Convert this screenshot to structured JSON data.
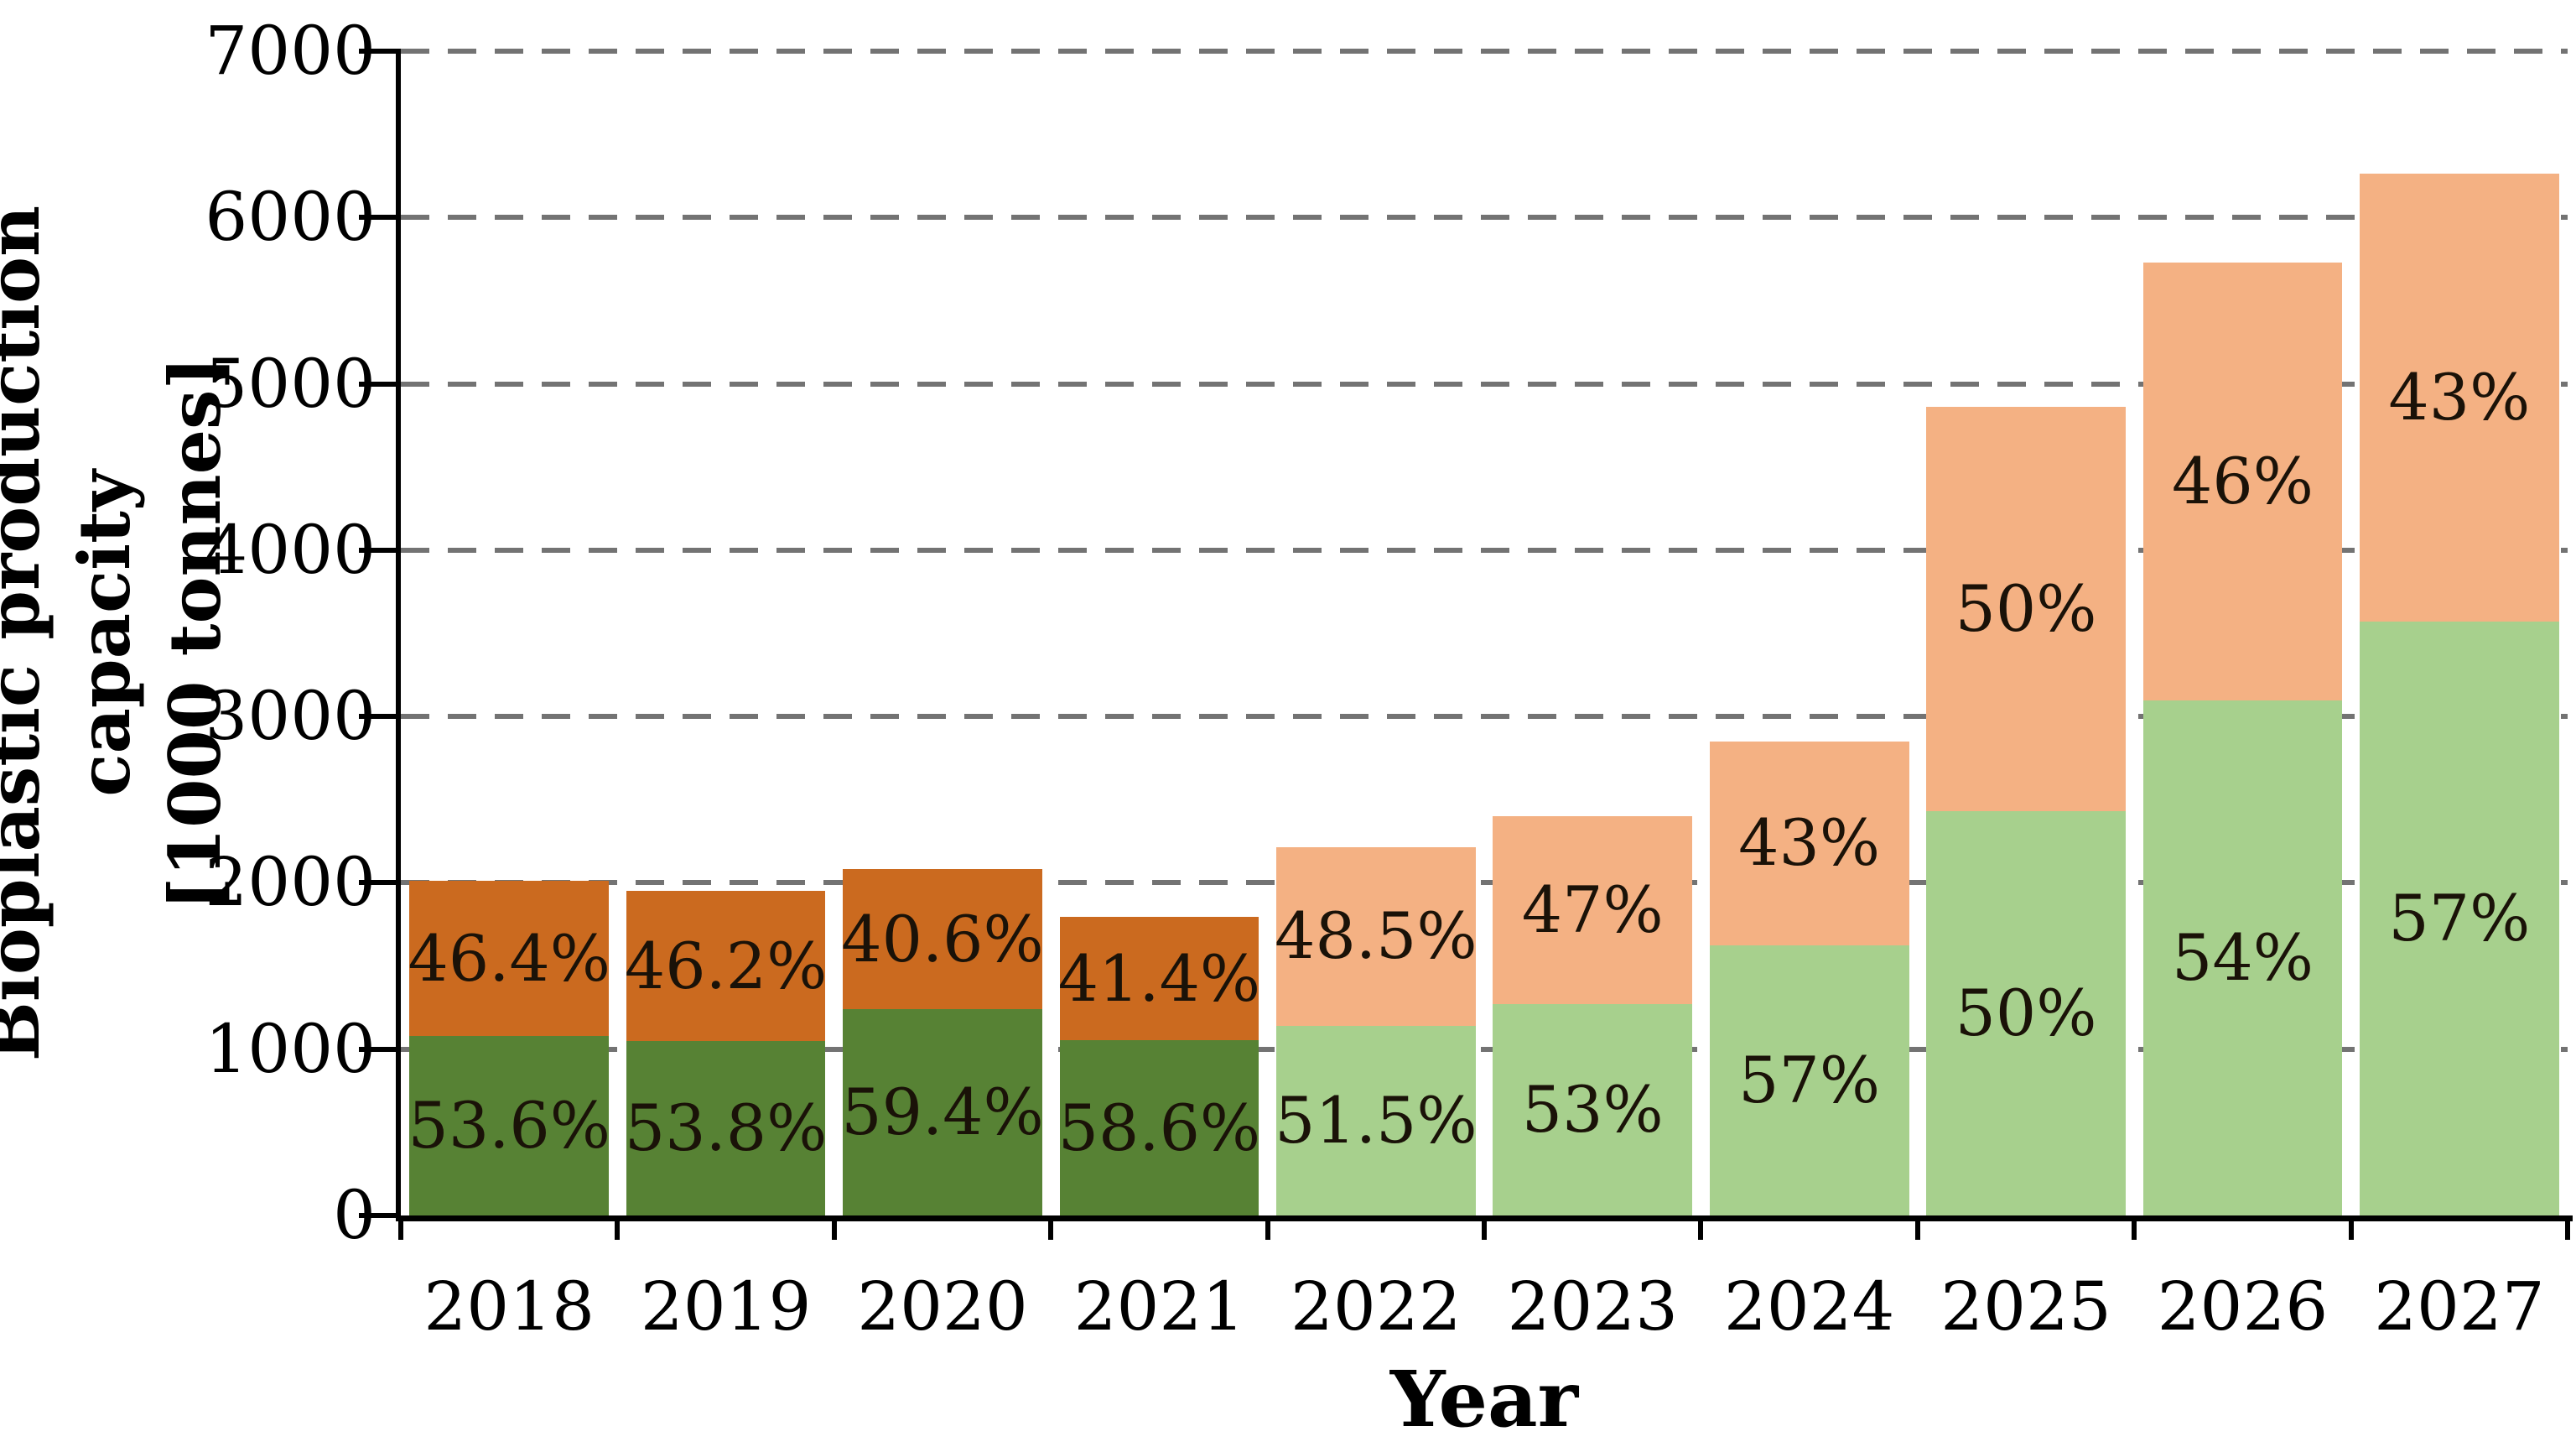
{
  "chart_data": {
    "type": "bar",
    "stacked": true,
    "title": "",
    "xlabel": "Year",
    "ylabel_line1": "Bioplastic production capacity",
    "ylabel_line2": "[1000 tonnes]",
    "ylim": [
      0,
      7000
    ],
    "ytick_interval": 1000,
    "yticks": [
      0,
      1000,
      2000,
      3000,
      4000,
      5000,
      6000,
      7000
    ],
    "grid": "dashed horizontal",
    "legend": "none",
    "categories": [
      "2018",
      "2019",
      "2020",
      "2021",
      "2022",
      "2023",
      "2024",
      "2025",
      "2026",
      "2027"
    ],
    "series": [
      {
        "name": "green (bottom segment)",
        "values": [
          1077,
          1049,
          1238,
          1052,
          1141,
          1272,
          1625,
          2430,
          3094,
          3571
        ]
      },
      {
        "name": "orange (top segment)",
        "values": [
          933,
          901,
          847,
          743,
          1074,
          1128,
          1226,
          2430,
          2636,
          2694
        ]
      }
    ],
    "totals": [
      2010,
      1950,
      2085,
      1795,
      2215,
      2400,
      2850,
      4860,
      5730,
      6265
    ],
    "bars": [
      {
        "year": "2018",
        "total": 2010,
        "green_pct": 53.6,
        "orange_pct": 46.4,
        "green_label": "53.6%",
        "orange_label": "46.4%",
        "palette": "dark"
      },
      {
        "year": "2019",
        "total": 1950,
        "green_pct": 53.8,
        "orange_pct": 46.2,
        "green_label": "53.8%",
        "orange_label": "46.2%",
        "palette": "dark"
      },
      {
        "year": "2020",
        "total": 2085,
        "green_pct": 59.4,
        "orange_pct": 40.6,
        "green_label": "59.4%",
        "orange_label": "40.6%",
        "palette": "dark"
      },
      {
        "year": "2021",
        "total": 1795,
        "green_pct": 58.6,
        "orange_pct": 41.4,
        "green_label": "58.6%",
        "orange_label": "41.4%",
        "palette": "dark"
      },
      {
        "year": "2022",
        "total": 2215,
        "green_pct": 51.5,
        "orange_pct": 48.5,
        "green_label": "51.5%",
        "orange_label": "48.5%",
        "palette": "light"
      },
      {
        "year": "2023",
        "total": 2400,
        "green_pct": 53.0,
        "orange_pct": 47.0,
        "green_label": "53%",
        "orange_label": "47%",
        "palette": "light"
      },
      {
        "year": "2024",
        "total": 2850,
        "green_pct": 57.0,
        "orange_pct": 43.0,
        "green_label": "57%",
        "orange_label": "43%",
        "palette": "light"
      },
      {
        "year": "2025",
        "total": 4860,
        "green_pct": 50.0,
        "orange_pct": 50.0,
        "green_label": "50%",
        "orange_label": "50%",
        "palette": "light"
      },
      {
        "year": "2026",
        "total": 5730,
        "green_pct": 54.0,
        "orange_pct": 46.0,
        "green_label": "54%",
        "orange_label": "46%",
        "palette": "light"
      },
      {
        "year": "2027",
        "total": 6265,
        "green_pct": 57.0,
        "orange_pct": 43.0,
        "green_label": "57%",
        "orange_label": "43%",
        "palette": "light"
      }
    ],
    "colors": {
      "green_dark": "#578234",
      "orange_dark": "#CB6A1F",
      "green_light": "#A7D08D",
      "orange_light": "#F4B183",
      "gridline": "#737373",
      "axis": "#000000",
      "label_text": "#1a1208"
    }
  }
}
